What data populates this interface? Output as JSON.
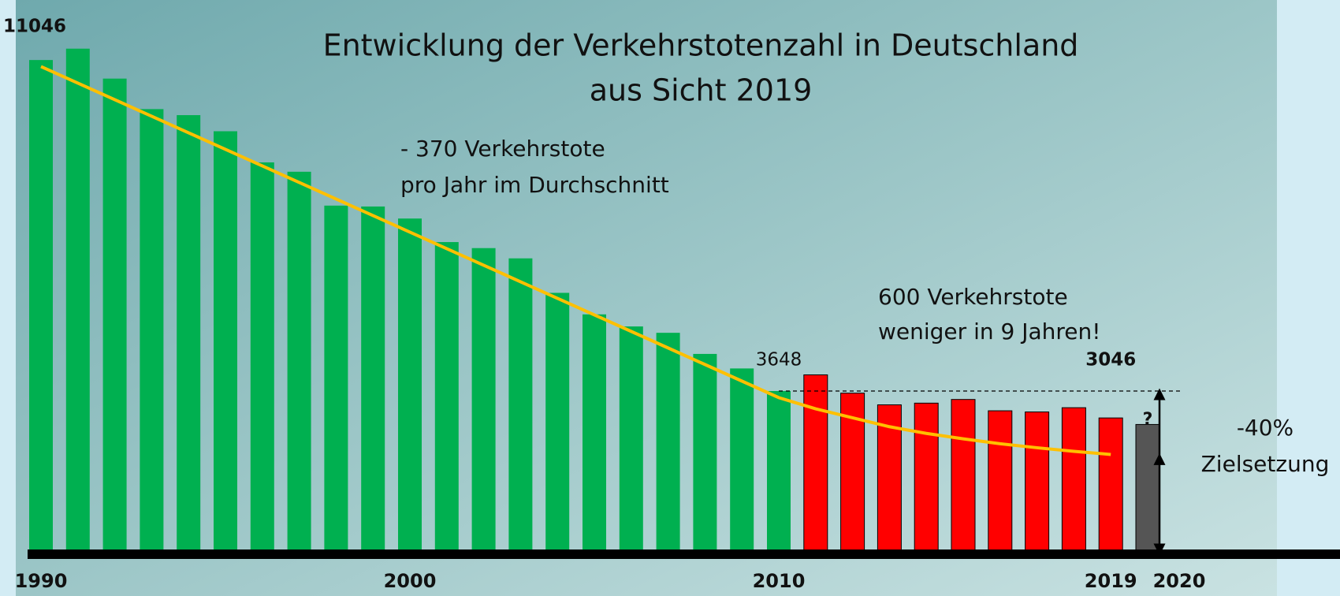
{
  "chart_data": {
    "type": "bar",
    "title": [
      "Entwicklung der Verkehrstotenzahl in Deutschland",
      "aus Sicht 2019"
    ],
    "annotations": [
      [
        "- 370 Verkehrstote",
        "pro Jahr im Durchschnitt"
      ],
      [
        "600 Verkehrstote",
        "weniger in 9 Jahren!"
      ],
      [
        "-40%",
        "Zielsetzung"
      ],
      "?"
    ],
    "categories": [
      "1990",
      null,
      null,
      null,
      null,
      null,
      null,
      null,
      null,
      null,
      "2000",
      null,
      null,
      null,
      null,
      null,
      null,
      null,
      null,
      null,
      "2010",
      null,
      null,
      null,
      null,
      null,
      null,
      null,
      null,
      "2019",
      "2020"
    ],
    "series": [
      {
        "color": "#00b050",
        "values": [
          11046,
          11300,
          10631,
          9949,
          9814,
          9454,
          8758,
          8549,
          7792,
          7772,
          7503,
          6977,
          6842,
          6613,
          5842,
          5361,
          5091,
          4949,
          4477,
          4152,
          3648,
          null,
          null,
          null,
          null,
          null,
          null,
          null,
          null,
          null,
          null
        ]
      },
      {
        "color": "#ff0000",
        "values": [
          null,
          null,
          null,
          null,
          null,
          null,
          null,
          null,
          null,
          null,
          null,
          null,
          null,
          null,
          null,
          null,
          null,
          null,
          null,
          null,
          null,
          4009,
          3600,
          3339,
          3377,
          3459,
          3206,
          3180,
          3275,
          3046,
          null
        ]
      },
      {
        "color": "#555555",
        "values": [
          null,
          null,
          null,
          null,
          null,
          null,
          null,
          null,
          null,
          null,
          null,
          null,
          null,
          null,
          null,
          null,
          null,
          null,
          null,
          null,
          null,
          null,
          null,
          null,
          null,
          null,
          null,
          null,
          null,
          null,
          2900
        ]
      },
      {
        "type": "line",
        "color": "#ffc000",
        "values": [
          10900,
          10530,
          10160,
          9790,
          9420,
          9050,
          8680,
          8310,
          7940,
          7570,
          7200,
          6830,
          6460,
          6090,
          5720,
          5350,
          4980,
          4610,
          4240,
          3870,
          3500,
          3250,
          3050,
          2850,
          2700,
          2580,
          2470,
          2380,
          2300,
          2230,
          null
        ]
      }
    ],
    "ylim": [
      0,
      12000
    ]
  }
}
